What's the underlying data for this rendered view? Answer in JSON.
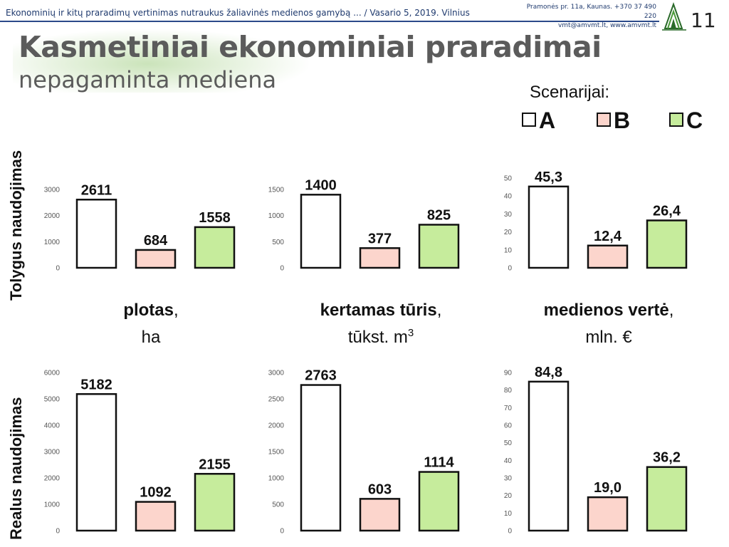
{
  "header": {
    "text": "Ekonominių ir kitų praradimų vertinimas nutraukus žaliavinės medienos gamybą ... / Vasario 5, 2019.  Vilnius",
    "contact_line1": "Pramonės pr. 11a, Kaunas. +370 37 490 220",
    "contact_line2": "vmt@amvmt.lt, www.amvmt.lt",
    "slide_number": "11"
  },
  "title": "Kasmetiniai ekonominiai praradimai",
  "subtitle": "nepagaminta mediena",
  "legend": {
    "title": "Scenarijai:",
    "items": [
      {
        "label": "A",
        "color": "#ffffff"
      },
      {
        "label": "B",
        "color": "#fcd5cc"
      },
      {
        "label": "C",
        "color": "#c6ec9c"
      }
    ]
  },
  "rows": [
    "Tolygus naudojimas",
    "Realus naudojimas"
  ],
  "columns": [
    {
      "title": "plotas",
      "sep": ",",
      "unit": "ha",
      "unit_sup": ""
    },
    {
      "title": "kertamas tūris",
      "sep": ",",
      "unit": "tūkst. m",
      "unit_sup": "3"
    },
    {
      "title": "medienos vertė",
      "sep": ",",
      "unit": "mln. €",
      "unit_sup": ""
    }
  ],
  "colors": {
    "A": "#ffffff",
    "B": "#fcd5cc",
    "C": "#c6ec9c",
    "stroke": "#111111"
  },
  "chart_data": [
    {
      "type": "bar",
      "row": "Tolygus naudojimas",
      "column": "plotas, ha",
      "categories": [
        "A",
        "B",
        "C"
      ],
      "values": [
        2611,
        684,
        1558
      ],
      "value_labels": [
        "2611",
        "684",
        "1558"
      ],
      "ylim": [
        0,
        3000
      ],
      "yticks": [
        0,
        1000,
        2000,
        3000
      ],
      "ytick_labels": [
        "0",
        "1000",
        "2000",
        "3000"
      ]
    },
    {
      "type": "bar",
      "row": "Tolygus naudojimas",
      "column": "kertamas tūris, tūkst. m3",
      "categories": [
        "A",
        "B",
        "C"
      ],
      "values": [
        1400,
        377,
        825
      ],
      "value_labels": [
        "1400",
        "377",
        "825"
      ],
      "ylim": [
        0,
        1500
      ],
      "yticks": [
        0,
        500,
        1000,
        1500
      ],
      "ytick_labels": [
        "0",
        "500",
        "1000",
        "1500"
      ]
    },
    {
      "type": "bar",
      "row": "Tolygus naudojimas",
      "column": "medienos vertė, mln. €",
      "categories": [
        "A",
        "B",
        "C"
      ],
      "values": [
        45.3,
        12.4,
        26.4
      ],
      "value_labels": [
        "45,3",
        "12,4",
        "26,4"
      ],
      "ylim": [
        0,
        50
      ],
      "yticks": [
        0,
        10,
        20,
        30,
        40,
        50
      ],
      "ytick_labels": [
        "0",
        "10",
        "20",
        "30",
        "40",
        "50"
      ]
    },
    {
      "type": "bar",
      "row": "Realus naudojimas",
      "column": "plotas, ha",
      "categories": [
        "A",
        "B",
        "C"
      ],
      "values": [
        5182,
        1092,
        2155
      ],
      "value_labels": [
        "5182",
        "1092",
        "2155"
      ],
      "ylim": [
        0,
        6000
      ],
      "yticks": [
        0,
        1000,
        2000,
        3000,
        4000,
        5000,
        6000
      ],
      "ytick_labels": [
        "0",
        "1000",
        "2000",
        "3000",
        "4000",
        "5000",
        "6000"
      ]
    },
    {
      "type": "bar",
      "row": "Realus naudojimas",
      "column": "kertamas tūris, tūkst. m3",
      "categories": [
        "A",
        "B",
        "C"
      ],
      "values": [
        2763,
        603,
        1114
      ],
      "value_labels": [
        "2763",
        "603",
        "1114"
      ],
      "ylim": [
        0,
        3000
      ],
      "yticks": [
        0,
        500,
        1000,
        1500,
        2000,
        2500,
        3000
      ],
      "ytick_labels": [
        "0",
        "500",
        "1000",
        "1500",
        "2000",
        "2500",
        "3000"
      ]
    },
    {
      "type": "bar",
      "row": "Realus naudojimas",
      "column": "medienos vertė, mln. €",
      "categories": [
        "A",
        "B",
        "C"
      ],
      "values": [
        84.8,
        19.0,
        36.2
      ],
      "value_labels": [
        "84,8",
        "19,0",
        "36,2"
      ],
      "ylim": [
        0,
        90
      ],
      "yticks": [
        0,
        10,
        20,
        30,
        40,
        50,
        60,
        70,
        80,
        90
      ],
      "ytick_labels": [
        "0",
        "10",
        "20",
        "30",
        "40",
        "50",
        "60",
        "70",
        "80",
        "90"
      ]
    }
  ]
}
